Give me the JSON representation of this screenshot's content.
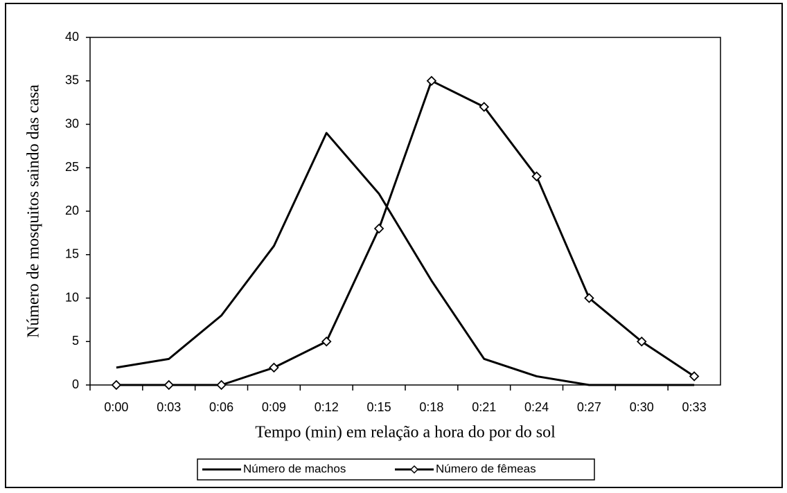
{
  "chart_data": {
    "type": "line",
    "ylabel": "Número de mosquitos saindo das casa",
    "xlabel": "Tempo (min) em relação a hora do por do sol",
    "categories": [
      "0:00",
      "0:03",
      "0:06",
      "0:09",
      "0:12",
      "0:15",
      "0:18",
      "0:21",
      "0:24",
      "0:27",
      "0:30",
      "0:33"
    ],
    "series": [
      {
        "name": "Número de machos",
        "color": "#000000",
        "values": [
          2,
          3,
          8,
          16,
          29,
          22,
          12,
          3,
          1,
          0,
          0,
          0
        ]
      },
      {
        "name": "Número de fêmeas",
        "color": "#000000",
        "marker": "diamond",
        "values": [
          0,
          0,
          0,
          2,
          5,
          18,
          35,
          32,
          24,
          10,
          5,
          1
        ]
      }
    ],
    "ylim": [
      0,
      40
    ],
    "yticks": [
      0,
      5,
      10,
      15,
      20,
      25,
      30,
      35,
      40
    ],
    "grid": false,
    "legend": "bottom"
  }
}
